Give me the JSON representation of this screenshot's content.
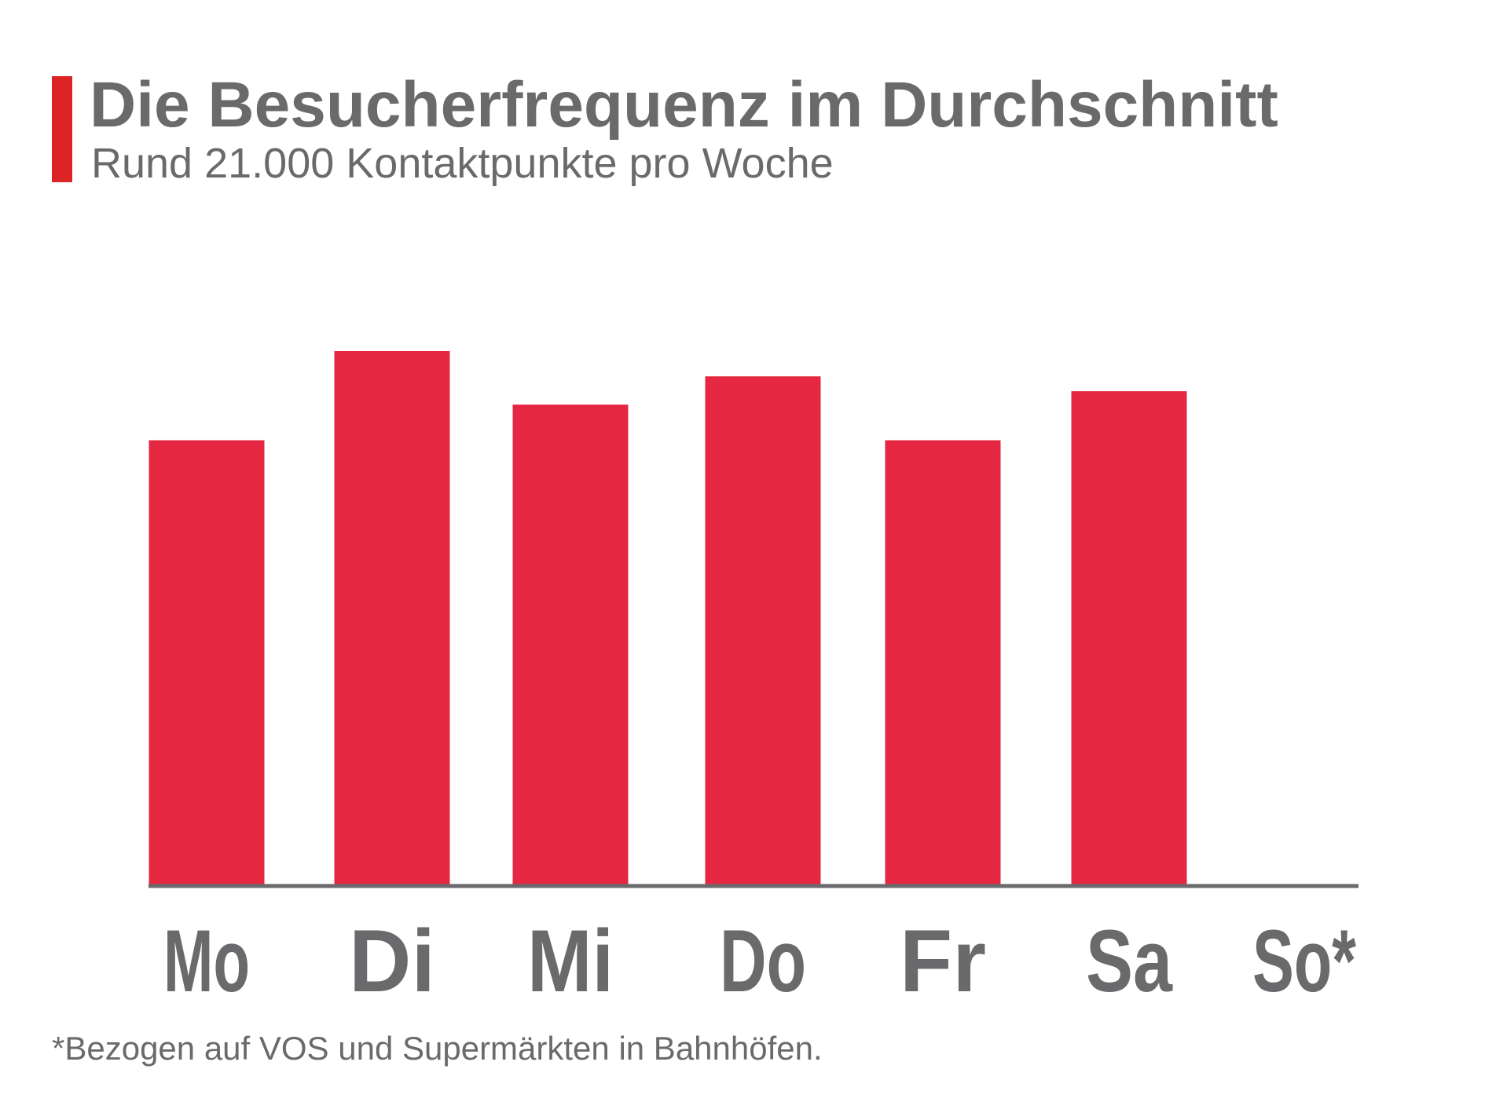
{
  "header": {
    "title": "Die Besucherfrequenz im Durchschnitt",
    "subtitle": "Rund 21.000 Kontaktpunkte pro Woche"
  },
  "footnote": "*Bezogen auf VOS und Supermärkten in Bahnhöfen.",
  "colors": {
    "bar": "#e52741",
    "accent": "#dc2424",
    "axis": "#6a6a6c",
    "text": "#6a6a6c"
  },
  "chart_data": {
    "type": "bar",
    "title": "Die Besucherfrequenz im Durchschnitt",
    "subtitle": "Rund 21.000 Kontaktpunkte pro Woche",
    "categories": [
      "Mo",
      "Di",
      "Mi",
      "Do",
      "Fr",
      "Sa",
      "So*"
    ],
    "values": [
      3000,
      3600,
      3240,
      3430,
      3000,
      3330,
      0
    ],
    "ylim": [
      0,
      3600
    ],
    "grid": false,
    "legend": "none",
    "xlabel": "",
    "ylabel": ""
  }
}
